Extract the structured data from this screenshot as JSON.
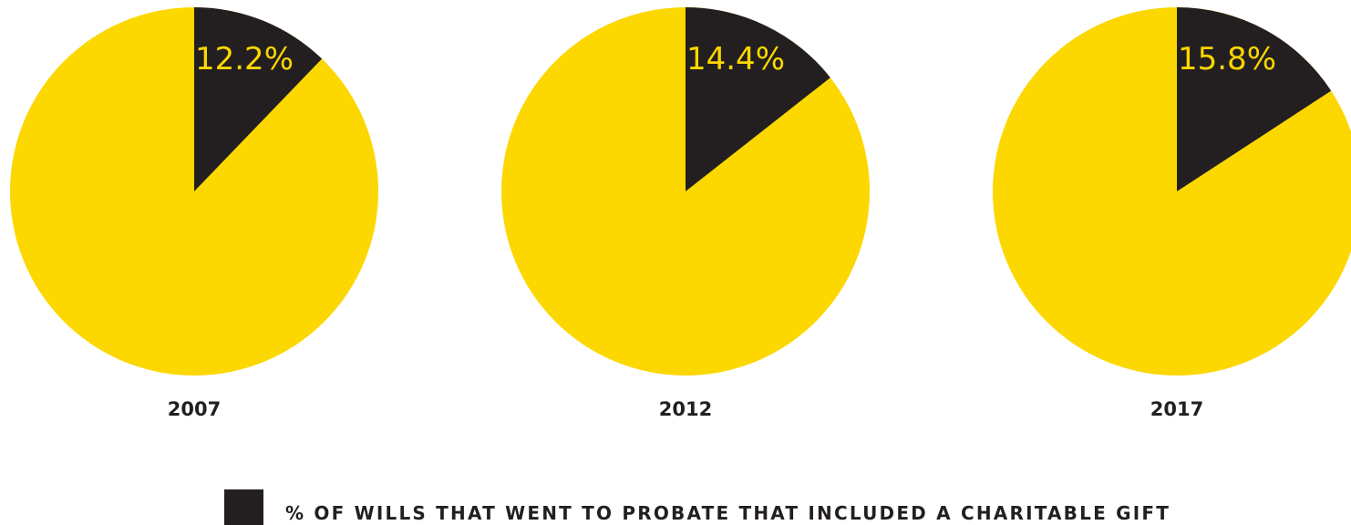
{
  "chart_data": {
    "type": "pie",
    "title": "",
    "charts": [
      {
        "category": "2007",
        "value": 12.2,
        "label": "12.2%"
      },
      {
        "category": "2012",
        "value": 14.4,
        "label": "14.4%"
      },
      {
        "category": "2017",
        "value": 15.8,
        "label": "15.8%"
      }
    ],
    "series": [
      {
        "name": "% OF WILLS THAT WENT TO PROBATE THAT INCLUDED A CHARITABLE GIFT",
        "values": [
          12.2,
          14.4,
          15.8
        ]
      }
    ],
    "legend": {
      "placement": "bottom-center",
      "entries": [
        "% OF WILLS THAT WENT TO PROBATE THAT INCLUDED A CHARITABLE GIFT"
      ]
    }
  },
  "colors": {
    "highlight": "#231f20",
    "remainder": "#fcd700",
    "label_on_highlight": "#fcd700",
    "text": "#231f20"
  }
}
